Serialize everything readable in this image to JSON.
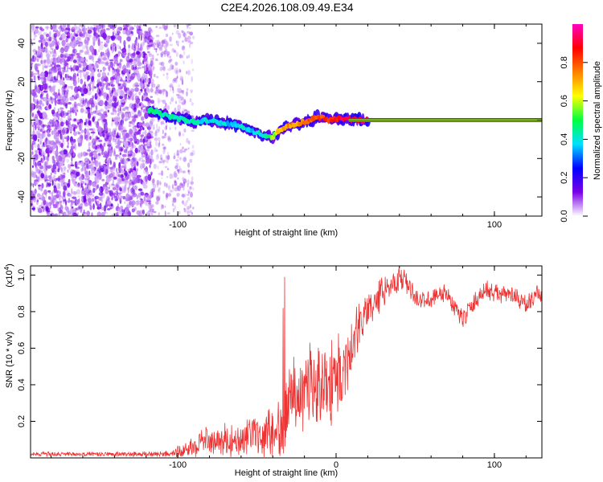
{
  "title": "C2E4.2026.108.09.49.E34",
  "chart_data": [
    {
      "type": "heatmap",
      "title": "C2E4.2026.108.09.49.E34",
      "xlabel": "Height of straight line (km)",
      "ylabel": "Frequency (Hz)",
      "xlim": [
        -193,
        130
      ],
      "ylim": [
        -50,
        50
      ],
      "xticks": [
        {
          "v": -100,
          "label": "-100"
        },
        {
          "v": 100,
          "label": "100"
        }
      ],
      "yticks": [
        {
          "v": 40,
          "label": "40"
        },
        {
          "v": 20,
          "label": "20"
        },
        {
          "v": 0,
          "label": "0"
        },
        {
          "v": -20,
          "label": "-20"
        },
        {
          "v": -40,
          "label": "-40"
        }
      ],
      "colorbar": {
        "label": "Normalized spectral amplitude",
        "range": [
          0,
          1
        ],
        "ticks": [
          {
            "v": 0.0,
            "label": "0.0"
          },
          {
            "v": 0.2,
            "label": "0.2"
          },
          {
            "v": 0.4,
            "label": "0.4"
          },
          {
            "v": 0.6,
            "label": "0.6"
          },
          {
            "v": 0.8,
            "label": "0.8"
          }
        ],
        "colormap": [
          "#ffffff",
          "#7a00e6",
          "#0000ff",
          "#00e0ff",
          "#00ff40",
          "#ffff00",
          "#ff8000",
          "#ff0000",
          "#ff00c0"
        ]
      },
      "noise_region": {
        "x_start": -193,
        "x_end_dense": -116,
        "x_end_sparse": -90
      },
      "trace": {
        "x": [
          -118,
          -110,
          -100,
          -90,
          -82,
          -75,
          -68,
          -60,
          -52,
          -45,
          -40,
          -35,
          -30,
          -25,
          -20,
          -15,
          -12,
          -8,
          -4,
          0,
          8,
          20,
          130
        ],
        "y": [
          5,
          3,
          1,
          -1,
          0,
          -1,
          -2,
          -3,
          -6,
          -8,
          -9,
          -5,
          -3,
          -2,
          -1,
          0,
          2,
          1,
          0,
          1,
          0.5,
          0,
          0
        ],
        "amplitude": [
          0.45,
          0.45,
          0.42,
          0.42,
          0.4,
          0.38,
          0.38,
          0.4,
          0.38,
          0.42,
          0.55,
          0.7,
          0.75,
          0.72,
          0.75,
          0.78,
          0.8,
          0.8,
          0.85,
          0.88,
          0.92,
          0.95,
          0.95
        ]
      }
    },
    {
      "type": "line",
      "xlabel": "Height of straight line (km)",
      "ylabel": "SNR (10 * v/v)",
      "y_scale_label": "(x10",
      "y_scale_exp": "4",
      "xlim": [
        -193,
        130
      ],
      "ylim": [
        0,
        1.05
      ],
      "xticks": [
        {
          "v": -100,
          "label": "-100"
        },
        {
          "v": 0,
          "label": "0"
        },
        {
          "v": 100,
          "label": "100"
        }
      ],
      "yticks": [
        {
          "v": 0.2,
          "label": "0.2"
        },
        {
          "v": 0.4,
          "label": "0.4"
        },
        {
          "v": 0.6,
          "label": "0.6"
        },
        {
          "v": 0.8,
          "label": "0.8"
        },
        {
          "v": 1.0,
          "label": "1.0"
        }
      ],
      "color": "#ee3333",
      "series": [
        {
          "name": "SNR",
          "x": [
            -193,
            -150,
            -110,
            -100,
            -92,
            -85,
            -80,
            -75,
            -70,
            -65,
            -60,
            -55,
            -50,
            -45,
            -42,
            -40,
            -38,
            -35,
            -33,
            -31,
            -30,
            -28,
            -25,
            -20,
            -15,
            -10,
            -5,
            0,
            5,
            10,
            15,
            20,
            25,
            30,
            35,
            40,
            45,
            50,
            55,
            60,
            65,
            70,
            75,
            80,
            85,
            90,
            95,
            100,
            105,
            110,
            115,
            120,
            125,
            130
          ],
          "mean": [
            0.02,
            0.02,
            0.02,
            0.03,
            0.05,
            0.09,
            0.1,
            0.09,
            0.1,
            0.1,
            0.11,
            0.12,
            0.11,
            0.12,
            0.14,
            0.12,
            0.13,
            0.2,
            0.23,
            0.28,
            0.33,
            0.34,
            0.36,
            0.38,
            0.4,
            0.4,
            0.43,
            0.44,
            0.5,
            0.62,
            0.72,
            0.81,
            0.86,
            0.92,
            0.96,
            0.97,
            0.95,
            0.88,
            0.86,
            0.87,
            0.9,
            0.9,
            0.82,
            0.76,
            0.82,
            0.88,
            0.92,
            0.9,
            0.89,
            0.9,
            0.86,
            0.84,
            0.88,
            0.9
          ],
          "spread": [
            0.012,
            0.012,
            0.015,
            0.03,
            0.05,
            0.07,
            0.08,
            0.08,
            0.08,
            0.09,
            0.09,
            0.1,
            0.1,
            0.11,
            0.12,
            0.12,
            0.12,
            0.16,
            0.2,
            0.2,
            0.2,
            0.2,
            0.2,
            0.2,
            0.22,
            0.22,
            0.24,
            0.24,
            0.2,
            0.15,
            0.12,
            0.1,
            0.09,
            0.08,
            0.07,
            0.07,
            0.06,
            0.05,
            0.05,
            0.05,
            0.05,
            0.05,
            0.05,
            0.05,
            0.05,
            0.05,
            0.05,
            0.05,
            0.05,
            0.05,
            0.05,
            0.05,
            0.05,
            0.05
          ],
          "spikes": [
            {
              "x": -32.5,
              "y": 0.99
            },
            {
              "x": -33.5,
              "y": 0.82
            }
          ]
        }
      ]
    }
  ]
}
